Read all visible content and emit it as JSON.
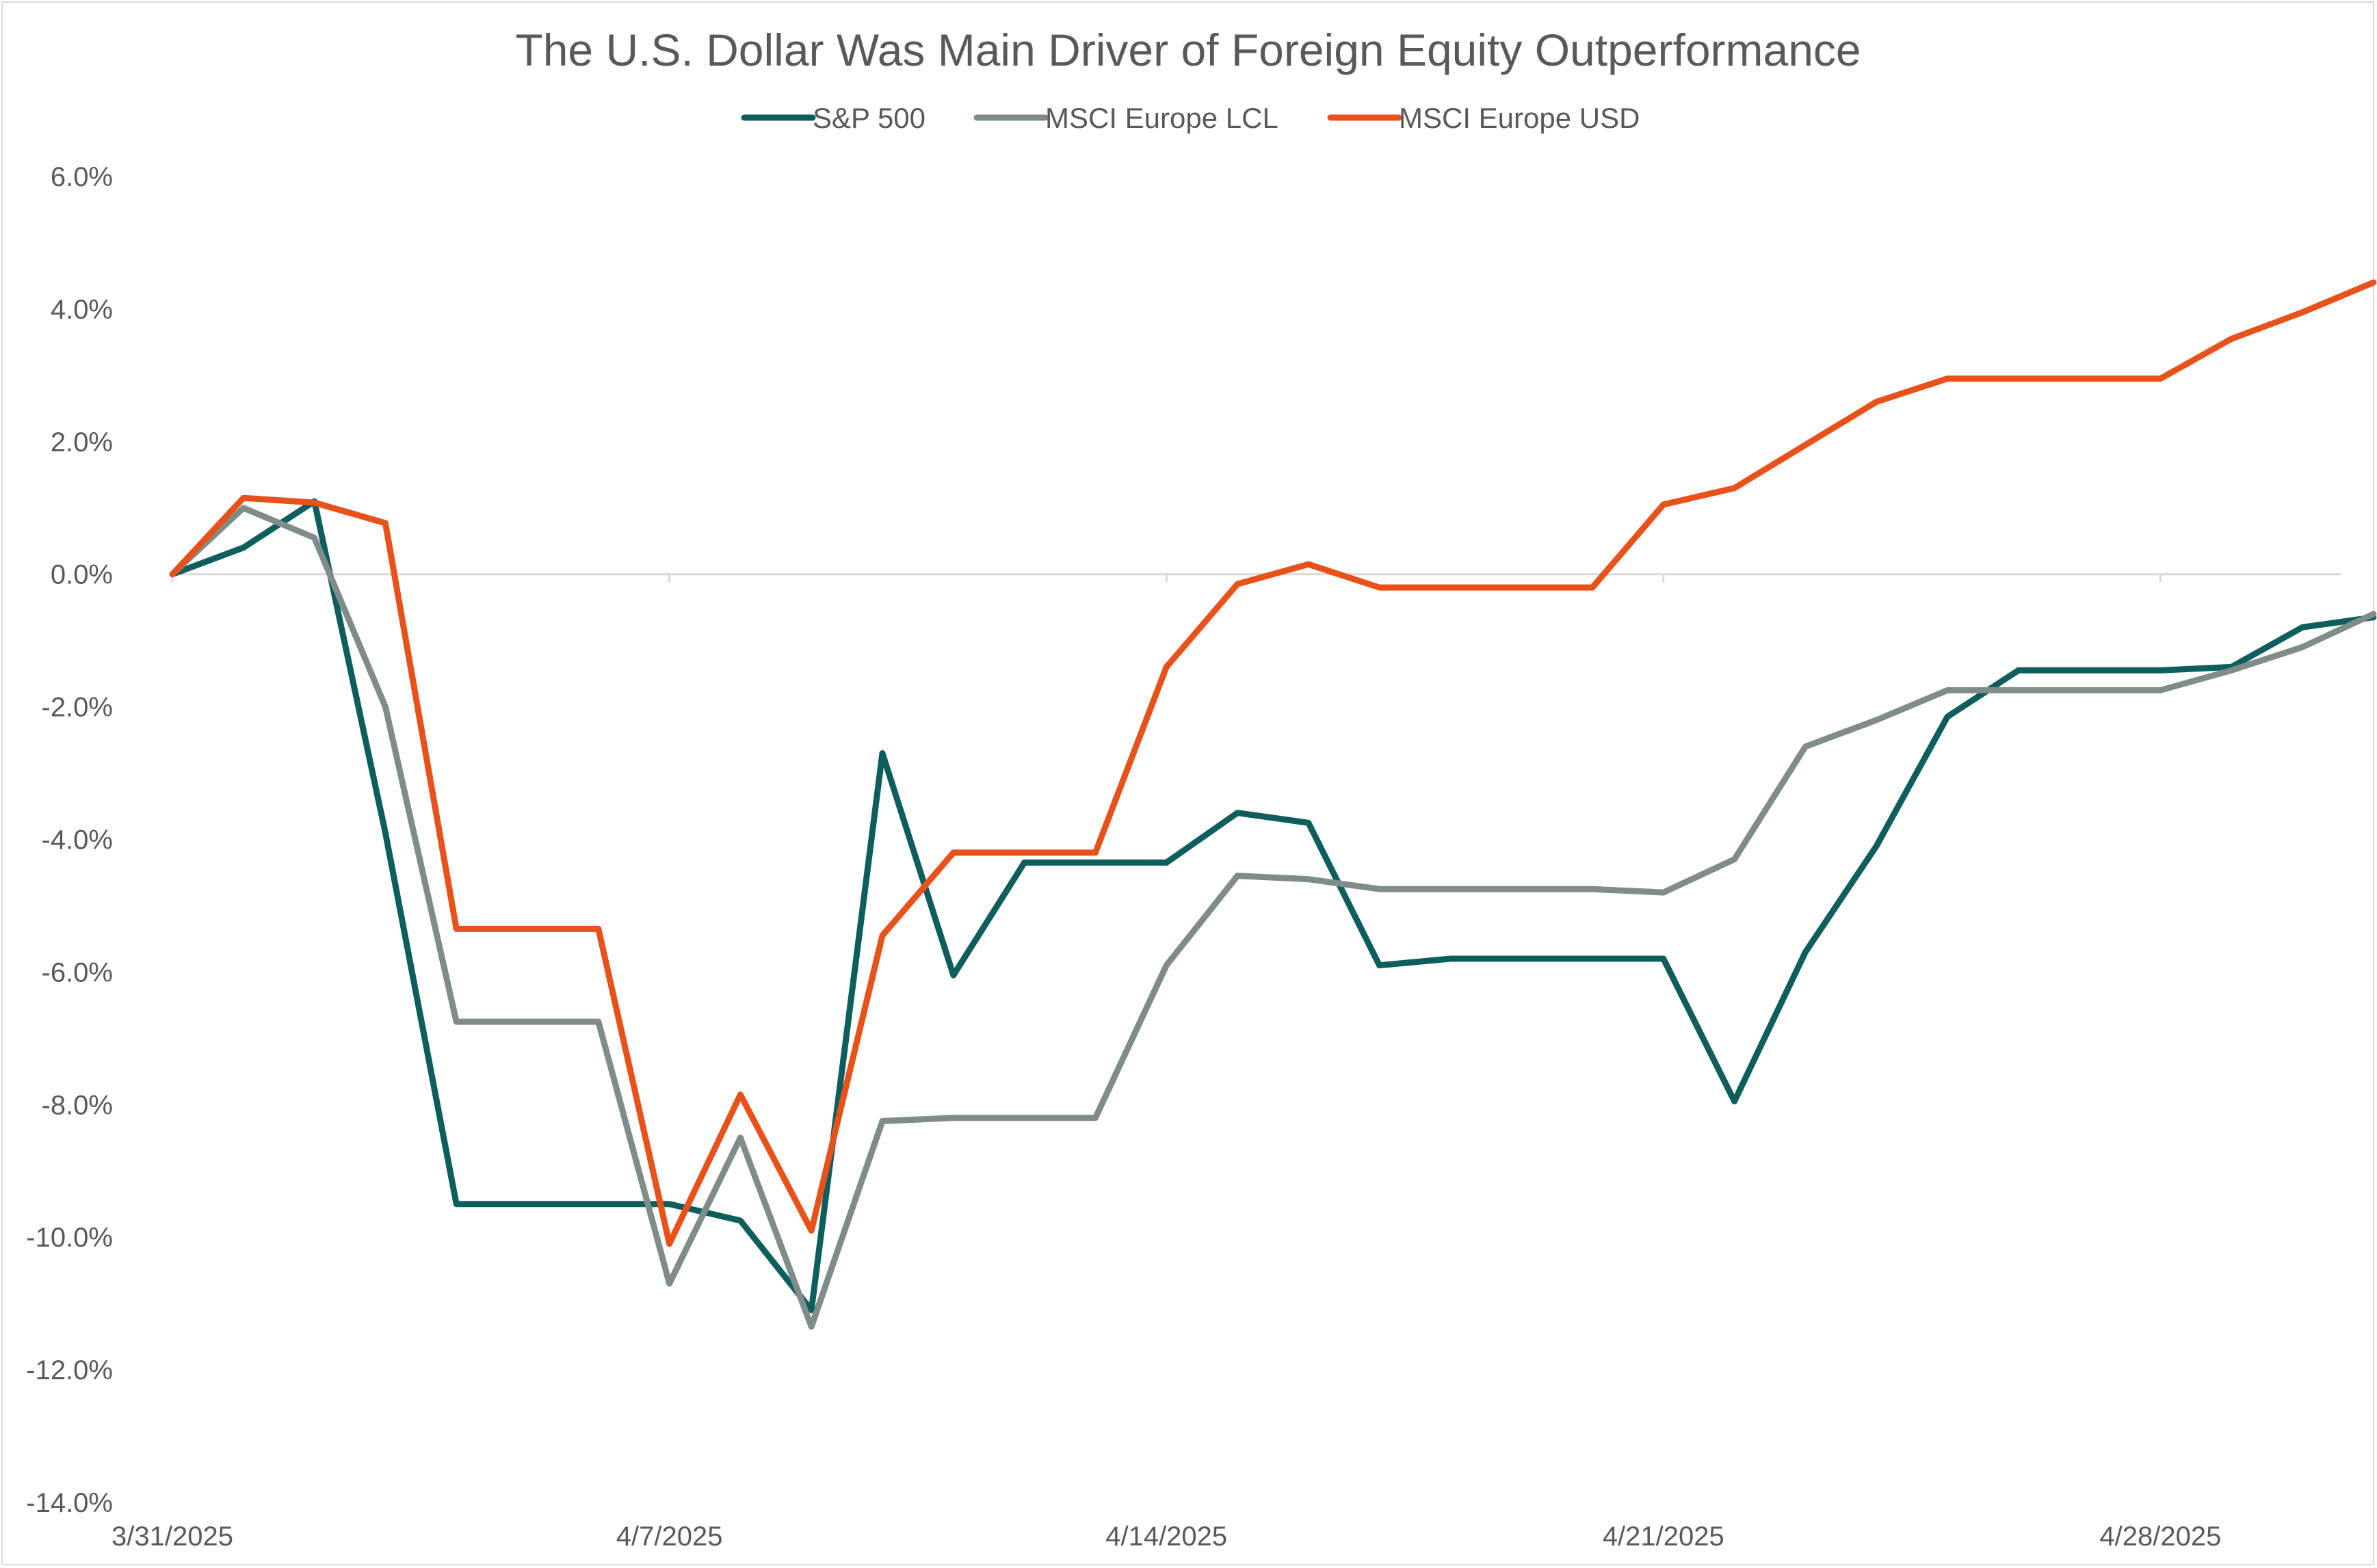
{
  "chart_data": {
    "type": "line",
    "title": "The U.S. Dollar Was Main Driver of Foreign Equity Outperformance",
    "xlabel": "",
    "ylabel": "",
    "legend_position": "top-center",
    "grid": false,
    "ylim": [
      -14.0,
      6.0
    ],
    "y_ticks": [
      "6.0%",
      "4.0%",
      "2.0%",
      "0.0%",
      "-2.0%",
      "-4.0%",
      "-6.0%",
      "-8.0%",
      "-10.0%",
      "-12.0%",
      "-14.0%"
    ],
    "y_tick_values": [
      6,
      4,
      2,
      0,
      -2,
      -4,
      -6,
      -8,
      -10,
      -12,
      -14
    ],
    "x_ticks": [
      "3/31/2025",
      "4/7/2025",
      "4/14/2025",
      "4/21/2025",
      "4/28/2025"
    ],
    "x_tick_dates": [
      "2025-03-31",
      "2025-04-07",
      "2025-04-14",
      "2025-04-21",
      "2025-04-28"
    ],
    "x": [
      "2025-03-31",
      "2025-04-01",
      "2025-04-02",
      "2025-04-03",
      "2025-04-04",
      "2025-04-07",
      "2025-04-08",
      "2025-04-09",
      "2025-04-10",
      "2025-04-11",
      "2025-04-14",
      "2025-04-15",
      "2025-04-16",
      "2025-04-17",
      "2025-04-18",
      "2025-04-21",
      "2025-04-22",
      "2025-04-23",
      "2025-04-24",
      "2025-04-25",
      "2025-04-28",
      "2025-04-29",
      "2025-04-30",
      "2025-05-01",
      "2025-05-02"
    ],
    "series": [
      {
        "name": "S&P 500",
        "color": "#0f5e5e",
        "points": [
          [
            "2025-03-31",
            0.0
          ],
          [
            "2025-04-01",
            0.4
          ],
          [
            "2025-04-02",
            1.1
          ],
          [
            "2025-04-03",
            -3.9
          ],
          [
            "2025-04-04",
            -9.5
          ],
          [
            "2025-04-06",
            -9.5
          ],
          [
            "2025-04-07",
            -9.5
          ],
          [
            "2025-04-08",
            -9.75
          ],
          [
            "2025-04-09",
            -11.1
          ],
          [
            "2025-04-10",
            -2.7
          ],
          [
            "2025-04-11",
            -6.05
          ],
          [
            "2025-04-12",
            -4.35
          ],
          [
            "2025-04-14",
            -4.35
          ],
          [
            "2025-04-15",
            -3.6
          ],
          [
            "2025-04-16",
            -3.75
          ],
          [
            "2025-04-17",
            -5.9
          ],
          [
            "2025-04-18",
            -5.8
          ],
          [
            "2025-04-20",
            -5.8
          ],
          [
            "2025-04-21",
            -5.8
          ],
          [
            "2025-04-22",
            -7.95
          ],
          [
            "2025-04-23",
            -5.7
          ],
          [
            "2025-04-24",
            -4.1
          ],
          [
            "2025-04-25",
            -2.15
          ],
          [
            "2025-04-26",
            -1.45
          ],
          [
            "2025-04-28",
            -1.45
          ],
          [
            "2025-04-29",
            -1.4
          ],
          [
            "2025-04-30",
            -0.8
          ],
          [
            "2025-05-01",
            -0.65
          ]
        ]
      },
      {
        "name": "MSCI Europe LCL",
        "color": "#7f8c88",
        "points": [
          [
            "2025-03-31",
            0.0
          ],
          [
            "2025-04-01",
            1.0
          ],
          [
            "2025-04-02",
            0.55
          ],
          [
            "2025-04-03",
            -2.0
          ],
          [
            "2025-04-04",
            -6.75
          ],
          [
            "2025-04-06",
            -6.75
          ],
          [
            "2025-04-07",
            -10.7
          ],
          [
            "2025-04-08",
            -8.5
          ],
          [
            "2025-04-09",
            -11.35
          ],
          [
            "2025-04-10",
            -8.25
          ],
          [
            "2025-04-11",
            -8.2
          ],
          [
            "2025-04-13",
            -8.2
          ],
          [
            "2025-04-14",
            -5.9
          ],
          [
            "2025-04-15",
            -4.55
          ],
          [
            "2025-04-16",
            -4.6
          ],
          [
            "2025-04-17",
            -4.75
          ],
          [
            "2025-04-19",
            -4.75
          ],
          [
            "2025-04-20",
            -4.75
          ],
          [
            "2025-04-21",
            -4.8
          ],
          [
            "2025-04-22",
            -4.3
          ],
          [
            "2025-04-23",
            -2.6
          ],
          [
            "2025-04-24",
            -2.2
          ],
          [
            "2025-04-25",
            -1.75
          ],
          [
            "2025-04-27",
            -1.75
          ],
          [
            "2025-04-28",
            -1.75
          ],
          [
            "2025-04-29",
            -1.45
          ],
          [
            "2025-04-30",
            -1.1
          ],
          [
            "2025-05-01",
            -0.6
          ]
        ]
      },
      {
        "name": "MSCI Europe USD",
        "color": "#e8521a",
        "points": [
          [
            "2025-03-31",
            0.0
          ],
          [
            "2025-04-01",
            1.15
          ],
          [
            "2025-04-02",
            1.08
          ],
          [
            "2025-04-03",
            0.77
          ],
          [
            "2025-04-04",
            -5.35
          ],
          [
            "2025-04-06",
            -5.35
          ],
          [
            "2025-04-07",
            -10.1
          ],
          [
            "2025-04-08",
            -7.85
          ],
          [
            "2025-04-09",
            -9.9
          ],
          [
            "2025-04-10",
            -5.45
          ],
          [
            "2025-04-11",
            -4.2
          ],
          [
            "2025-04-13",
            -4.2
          ],
          [
            "2025-04-14",
            -1.4
          ],
          [
            "2025-04-15",
            -0.15
          ],
          [
            "2025-04-16",
            0.15
          ],
          [
            "2025-04-17",
            -0.2
          ],
          [
            "2025-04-19",
            -0.2
          ],
          [
            "2025-04-20",
            -0.2
          ],
          [
            "2025-04-21",
            1.05
          ],
          [
            "2025-04-22",
            1.3
          ],
          [
            "2025-04-23",
            1.95
          ],
          [
            "2025-04-24",
            2.6
          ],
          [
            "2025-04-25",
            2.95
          ],
          [
            "2025-04-27",
            2.95
          ],
          [
            "2025-04-28",
            2.95
          ],
          [
            "2025-04-29",
            3.55
          ],
          [
            "2025-04-30",
            3.95
          ],
          [
            "2025-05-01",
            4.4
          ]
        ]
      }
    ]
  }
}
